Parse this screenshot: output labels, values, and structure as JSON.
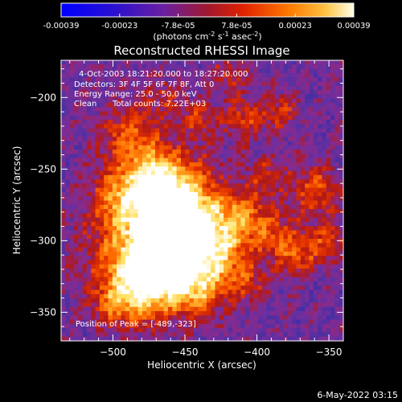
{
  "colorbar": {
    "tick_labels": [
      "-0.00039",
      "-0.00023",
      "-7.8e-05",
      "7.8e-05",
      "0.00023",
      "0.00039"
    ],
    "units_text": "(photons cm",
    "units_sup1": "-2",
    "units_mid": " s",
    "units_sup2": "-1",
    "units_mid2": " asec",
    "units_sup3": "-2",
    "units_end": ")"
  },
  "chart_data": {
    "type": "heatmap",
    "title": "Reconstructed RHESSI Image",
    "xlabel": "Heliocentric X (arcsec)",
    "ylabel": "Heliocentric Y (arcsec)",
    "xlim": [
      -536,
      -340
    ],
    "ylim": [
      -370,
      -174
    ],
    "x_ticks": [
      -500,
      -450,
      -400,
      -350
    ],
    "y_ticks": [
      -200,
      -250,
      -300,
      -350
    ],
    "value_range": [
      -0.00039,
      0.00039
    ],
    "colormap": [
      "#0000ff",
      "#3a20c8",
      "#4a2fa0",
      "#6a2fa0",
      "#8a2a8a",
      "#b01818",
      "#e03000",
      "#ff6a00",
      "#ffa020",
      "#ffe060",
      "#ffffff"
    ],
    "annotations": {
      "time": "4-Oct-2003 18:21:20.000 to 18:27:20.000",
      "detectors": "Detectors: 3F 4F 5F 6F 7F 8F, Att 0",
      "energy": "Energy Range: 25.0 - 50.0 keV",
      "clean": "Clean",
      "counts": "Total counts: 7.22E+03",
      "peak": "Position of Peak = [-489,-323]"
    },
    "peak": [
      -489,
      -323
    ]
  },
  "footer": {
    "timestamp": "6-May-2022 03:15"
  }
}
